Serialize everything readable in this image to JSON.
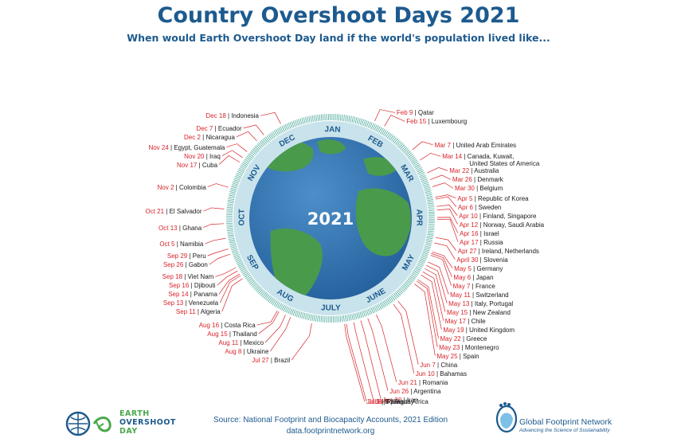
{
  "title": "Country Overshoot Days 2021",
  "subtitle": "When would Earth Overshoot Day land if the world's population lived like...",
  "center_year": "2021",
  "months": [
    "JAN",
    "FEB",
    "MAR",
    "APR",
    "MAY",
    "JUNE",
    "JULY",
    "AUG",
    "SEP",
    "OCT",
    "NOV",
    "DEC"
  ],
  "countries": [
    {
      "date": "Feb 9",
      "country": "Qatar"
    },
    {
      "date": "Feb 15",
      "country": "Luxembourg"
    },
    {
      "date": "Mar 7",
      "country": "United Arab Emirates"
    },
    {
      "date": "Mar 14",
      "country": "Canada, Kuwait,",
      "country_line2": "United States of America"
    },
    {
      "date": "Mar 22",
      "country": "Australia"
    },
    {
      "date": "Mar 26",
      "country": "Denmark"
    },
    {
      "date": "Mar 30",
      "country": "Belgium"
    },
    {
      "date": "Apr 5",
      "country": "Republic of Korea"
    },
    {
      "date": "Apr 6",
      "country": "Sweden"
    },
    {
      "date": "Apr 10",
      "country": "Finland, Singapore"
    },
    {
      "date": "Apr 12",
      "country": "Norway, Saudi Arabia"
    },
    {
      "date": "Apr 16",
      "country": "Israel"
    },
    {
      "date": "Apr 17",
      "country": "Russia"
    },
    {
      "date": "Apr 27",
      "country": "Ireland, Netherlands"
    },
    {
      "date": "April 30",
      "country": "Slovenia"
    },
    {
      "date": "May 5",
      "country": "Germany"
    },
    {
      "date": "May 6",
      "country": "Japan"
    },
    {
      "date": "May 7",
      "country": "France"
    },
    {
      "date": "May 11",
      "country": "Switzerland"
    },
    {
      "date": "May 13",
      "country": "Italy, Portugal"
    },
    {
      "date": "May 15",
      "country": "New Zealand"
    },
    {
      "date": "May 17",
      "country": "Chile"
    },
    {
      "date": "May 19",
      "country": "United Kingdom"
    },
    {
      "date": "May 22",
      "country": "Greece"
    },
    {
      "date": "May 23",
      "country": "Montenegro"
    },
    {
      "date": "May 25",
      "country": "Spain"
    },
    {
      "date": "Jun 7",
      "country": "China"
    },
    {
      "date": "Jun 10",
      "country": "Bahamas"
    },
    {
      "date": "Jun 21",
      "country": "Romania"
    },
    {
      "date": "Jun 26",
      "country": "Argentina"
    },
    {
      "date": "Jun 30",
      "country": "Iran"
    },
    {
      "date": "Jul 4",
      "country": "South Africa"
    },
    {
      "date": "Jul 8",
      "country": "Paraguay"
    },
    {
      "date": "Jul 9",
      "country": "Bolivia"
    },
    {
      "date": "Jul 27",
      "country": "Brazil"
    },
    {
      "date": "Aug 8",
      "country": "Ukraine"
    },
    {
      "date": "Aug 11",
      "country": "Mexico"
    },
    {
      "date": "Aug 15",
      "country": "Thailand"
    },
    {
      "date": "Aug 16",
      "country": "Costa Rica"
    },
    {
      "date": "Sep 11",
      "country": "Algeria"
    },
    {
      "date": "Sep 13",
      "country": "Venezuela"
    },
    {
      "date": "Sep 14",
      "country": "Panama"
    },
    {
      "date": "Sep 16",
      "country": "Djibouti"
    },
    {
      "date": "Sep 18",
      "country": "Viet Nam"
    },
    {
      "date": "Sep 26",
      "country": "Gabon"
    },
    {
      "date": "Sep 29",
      "country": "Peru"
    },
    {
      "date": "Oct 5",
      "country": "Namibia"
    },
    {
      "date": "Oct 13",
      "country": "Ghana"
    },
    {
      "date": "Oct 21",
      "country": "El Salvador"
    },
    {
      "date": "Nov 2",
      "country": "Colombia"
    },
    {
      "date": "Nov 17",
      "country": "Cuba"
    },
    {
      "date": "Nov 20",
      "country": "Iraq"
    },
    {
      "date": "Nov 24",
      "country": "Egypt, Guatemala"
    },
    {
      "date": "Dec 2",
      "country": "Nicaragua"
    },
    {
      "date": "Dec 7",
      "country": "Ecuador"
    },
    {
      "date": "Dec 18",
      "country": "Indonesia"
    }
  ],
  "logo_left": {
    "line1": "EARTH",
    "line2": "OVERSHOOT",
    "line3": "DAY"
  },
  "source": "Source: National Footprint and Biocapacity Accounts, 2021 Edition",
  "source_url": "data.footprintnetwork.org",
  "logo_right": {
    "name": "Global Footprint Network",
    "tagline": "Advancing the Science of Sustainability"
  },
  "colors": {
    "blue": "#1d5a8e",
    "red": "#d8232a",
    "ocean": "#2f6fae",
    "land": "#4a9a4c",
    "ring": "#c9e3ec",
    "tick": "#4aa89a"
  }
}
